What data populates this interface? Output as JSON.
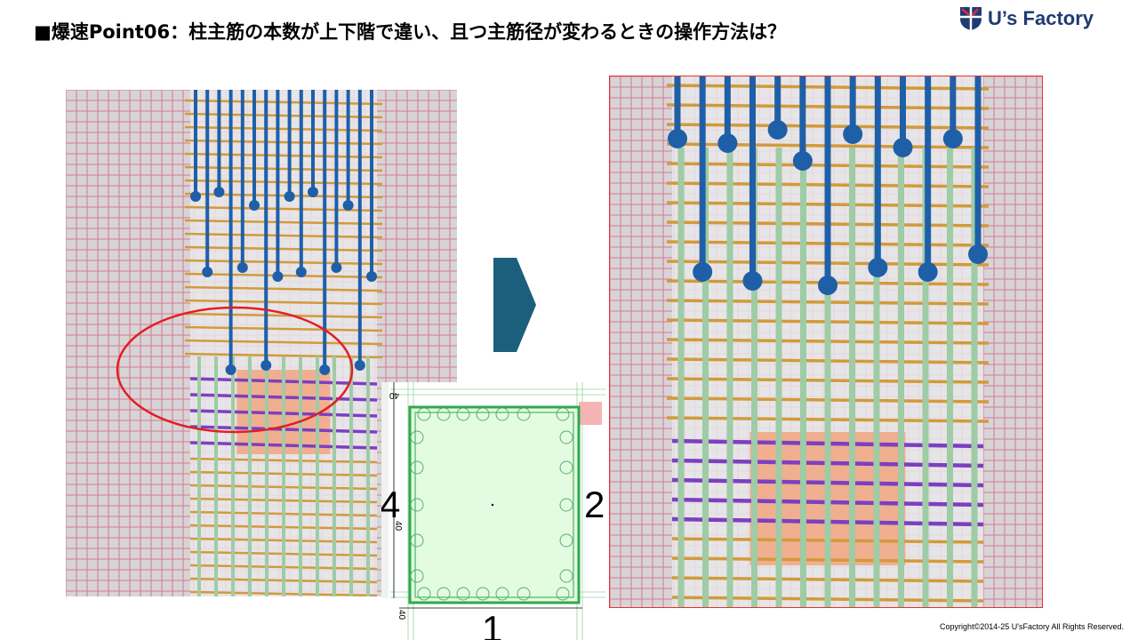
{
  "title": "■爆速Point06：柱主筋の本数が上下階で違い、且つ主筋径が変わるときの操作方法は？",
  "logo": {
    "text": "U’s Factory",
    "icon": "shield-logo-icon"
  },
  "plan": {
    "dim_top": "40",
    "dim_left": "40",
    "dim_bottom": "40",
    "axis_left": "4",
    "axis_right": "2",
    "axis_bottom": "1"
  },
  "copyright": "Copyright©2014-25  U'sFactory All Rights Reserved.",
  "colors": {
    "arrow": "#1b5f7c",
    "plan_fill": "#e3fbe1",
    "plan_stroke": "#2fa84f",
    "highlight_circle": "#e31e24",
    "rebar_blue": "#1f5fa8",
    "rebar_green": "#9fcba5",
    "hoop_orange": "#d29a3a",
    "hoop_purple": "#7d3fc1"
  }
}
